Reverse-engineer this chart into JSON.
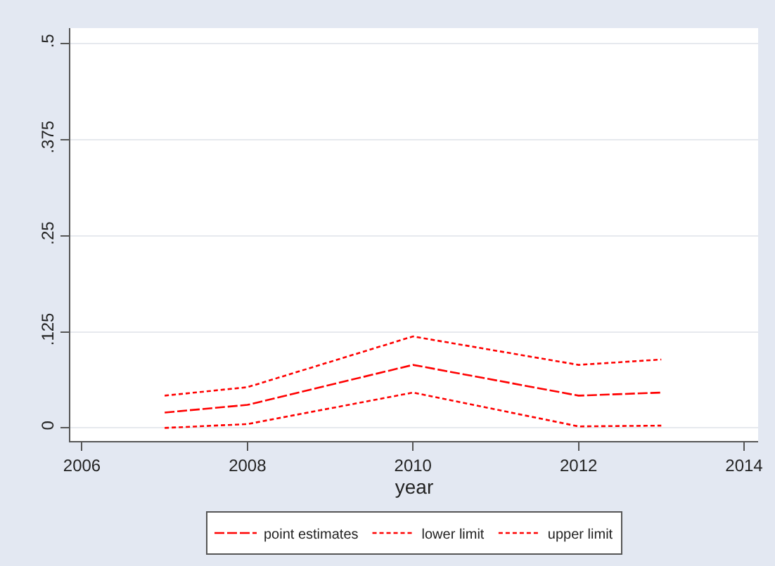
{
  "chart_data": {
    "type": "line",
    "xlabel": "year",
    "x": [
      2007,
      2008,
      2010,
      2012,
      2013
    ],
    "series": [
      {
        "name": "point estimates",
        "color": "#ff0000",
        "line_style": "longdash",
        "values": [
          0.02,
          0.03,
          0.082,
          0.042,
          0.046
        ]
      },
      {
        "name": "lower limit",
        "color": "#ff0000",
        "line_style": "dashed",
        "values": [
          0.0,
          0.005,
          0.046,
          0.002,
          0.003
        ]
      },
      {
        "name": "upper limit",
        "color": "#ff0000",
        "line_style": "dashed",
        "values": [
          0.042,
          0.053,
          0.119,
          0.082,
          0.089
        ]
      }
    ],
    "xlim": [
      2005.86,
      2014.17
    ],
    "xticks": [
      2006,
      2008,
      2010,
      2012,
      2014
    ],
    "ylim": [
      -0.017,
      0.52
    ],
    "yticks": [
      {
        "value": 0,
        "label": "0"
      },
      {
        "value": 0.125,
        "label": ".125"
      },
      {
        "value": 0.25,
        "label": ".25"
      },
      {
        "value": 0.375,
        "label": ".375"
      },
      {
        "value": 0.5,
        "label": ".5"
      }
    ],
    "grid": "y",
    "legend": "bottom",
    "marker": "none"
  }
}
